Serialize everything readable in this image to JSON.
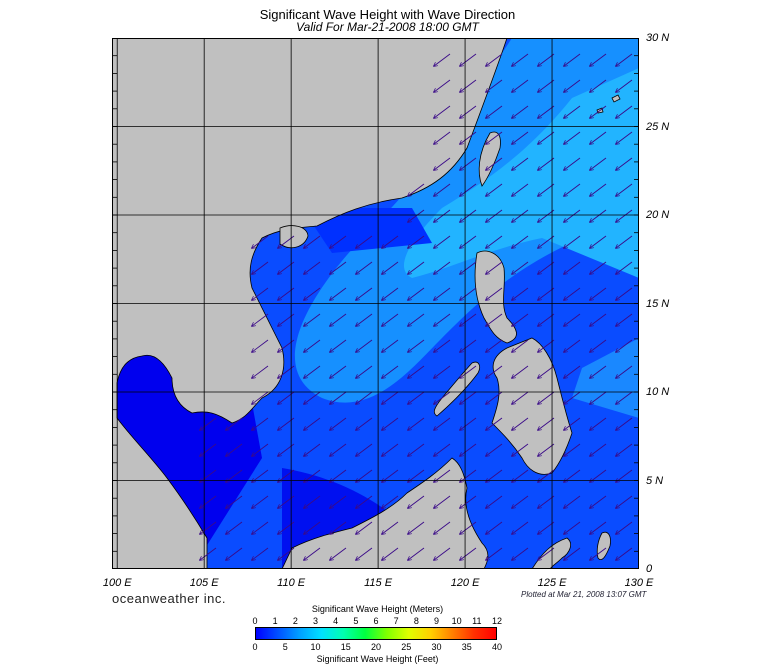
{
  "header": {
    "title": "Significant Wave Height with Wave Direction",
    "subtitle": "Valid For Mar-21-2008 18:00 GMT"
  },
  "axes": {
    "lat_labels": [
      "30 N",
      "25 N",
      "20 N",
      "15 N",
      "10 N",
      "5 N",
      "0"
    ],
    "lat_values": [
      30,
      25,
      20,
      15,
      10,
      5,
      0
    ],
    "lon_labels": [
      "100 E",
      "105 E",
      "110 E",
      "115 E",
      "120 E",
      "125 E",
      "130 E"
    ],
    "lon_values": [
      100,
      105,
      110,
      115,
      120,
      125,
      130
    ],
    "lon_range": [
      99.7,
      130
    ],
    "lat_range": [
      0,
      30
    ]
  },
  "footer": {
    "brand": "oceanweather inc.",
    "plotted": "Plotted at Mar 21, 2008 13:07 GMT"
  },
  "legend": {
    "meters_title": "Significant Wave Height (Meters)",
    "meters_ticks": [
      "0",
      "1",
      "2",
      "3",
      "4",
      "5",
      "6",
      "7",
      "8",
      "9",
      "10",
      "11",
      "12"
    ],
    "feet_title": "Significant Wave Height (Feet)",
    "feet_ticks": [
      "0",
      "5",
      "10",
      "15",
      "20",
      "25",
      "30",
      "35",
      "40"
    ],
    "colorscale": [
      "#0000ff",
      "#0050ff",
      "#00a0ff",
      "#00e0ff",
      "#00ffb0",
      "#00ff40",
      "#80ff00",
      "#e0ff00",
      "#ffd000",
      "#ff8000",
      "#ff3000",
      "#ff0000"
    ]
  },
  "colors": {
    "land": "#c0c0c0",
    "sea_dark": "#0000ff",
    "sea_mid": "#0a4cff",
    "sea_light": "#16a0ff",
    "arrow": "#3a0a88",
    "grid": "#000000"
  },
  "wave_direction": "from northeast"
}
